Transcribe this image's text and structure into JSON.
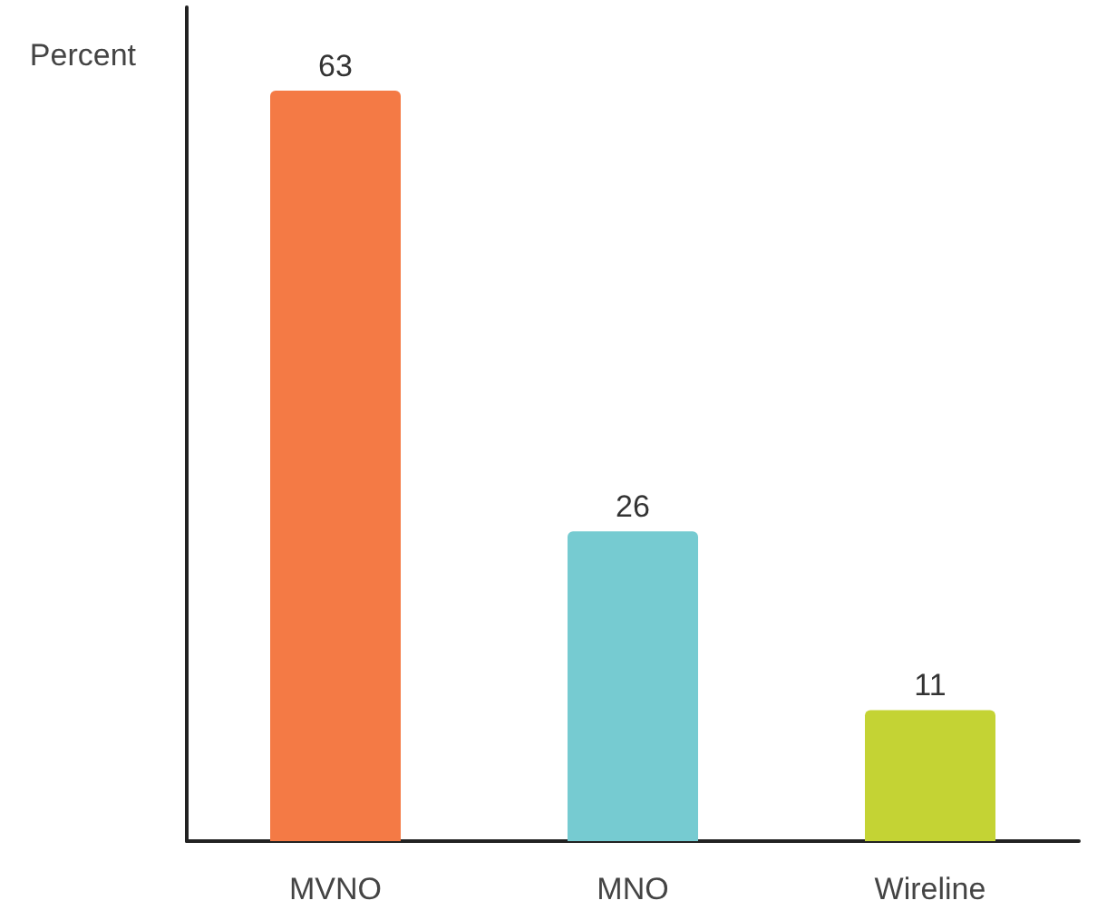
{
  "chart_data": {
    "type": "bar",
    "ylabel": "Percent",
    "categories": [
      "MVNO",
      "MNO",
      "Wireline"
    ],
    "values": [
      63,
      26,
      11
    ],
    "colors": [
      "#f47a45",
      "#76cbd1",
      "#c4d334"
    ],
    "ylim": [
      0,
      70
    ],
    "tick_labels": "x",
    "data_labels": true
  }
}
